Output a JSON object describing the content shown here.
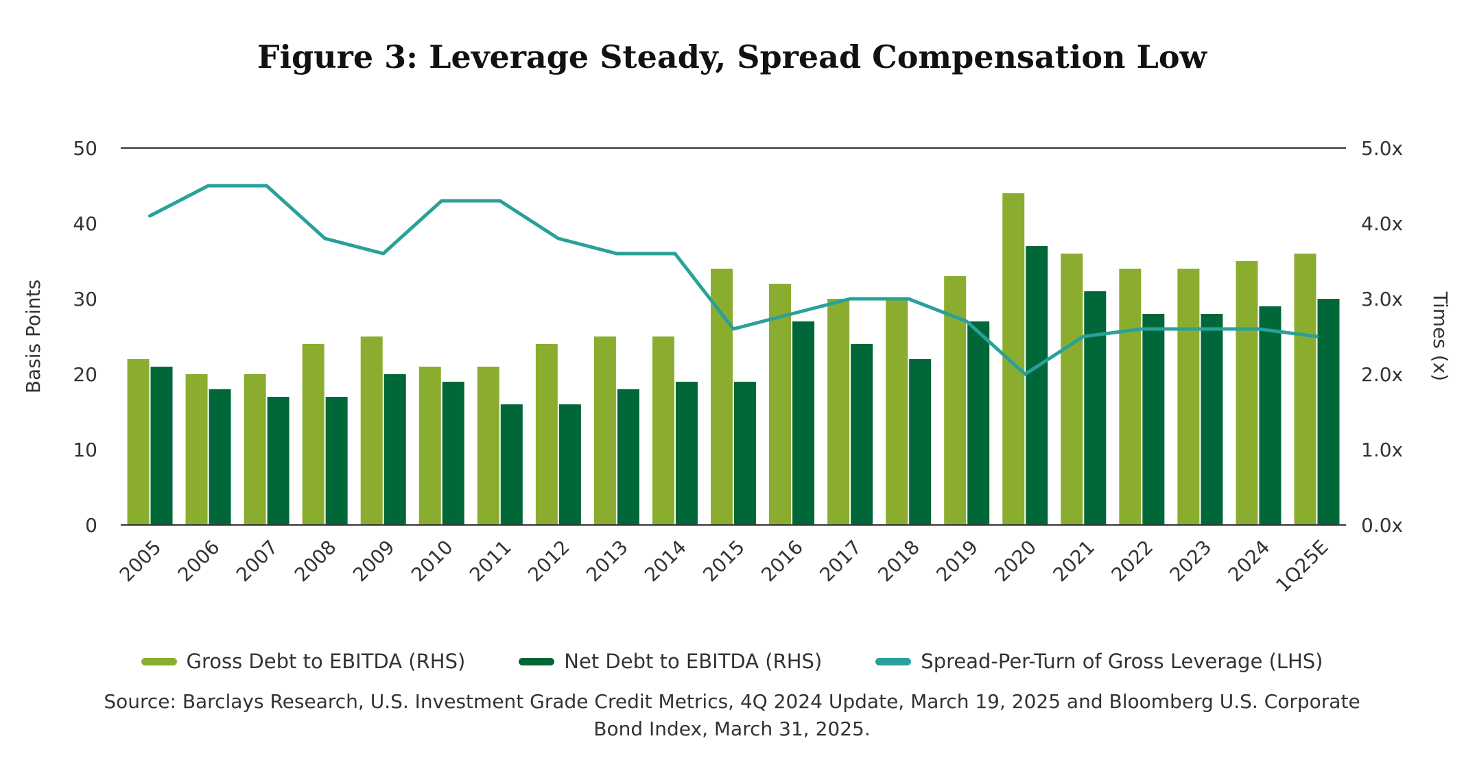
{
  "title": "Figure 3: Leverage Steady, Spread Compensation Low",
  "source": "Source: Barclays Research, U.S. Investment Grade Credit Metrics, 4Q 2024 Update, March 19, 2025 and Bloomberg U.S. Corporate Bond Index, March 31, 2025.",
  "colors": {
    "gross": "#8aad2f",
    "net": "#006838",
    "spread": "#2aa198",
    "axis": "#333333"
  },
  "chart_data": {
    "type": "bar",
    "categories": [
      "2005",
      "2006",
      "2007",
      "2008",
      "2009",
      "2010",
      "2011",
      "2012",
      "2013",
      "2014",
      "2015",
      "2016",
      "2017",
      "2018",
      "2019",
      "2020",
      "2021",
      "2022",
      "2023",
      "2024",
      "1Q25E"
    ],
    "ylabel": "Basis Points",
    "y2label": "Times (x)",
    "ylim": [
      0,
      50
    ],
    "y2lim": [
      0,
      5
    ],
    "yticks": [
      "0",
      "10",
      "20",
      "30",
      "40",
      "50"
    ],
    "y2ticks": [
      "0.0x",
      "1.0x",
      "2.0x",
      "3.0x",
      "4.0x",
      "5.0x"
    ],
    "grid": false,
    "legend_position": "bottom",
    "series": [
      {
        "name": "Gross Debt to EBITDA (RHS)",
        "type": "bar",
        "axis": "right",
        "values": [
          2.2,
          2.0,
          2.0,
          2.4,
          2.5,
          2.1,
          2.1,
          2.4,
          2.5,
          2.5,
          3.4,
          3.2,
          3.0,
          3.0,
          3.3,
          4.4,
          3.6,
          3.4,
          3.4,
          3.5,
          3.6
        ]
      },
      {
        "name": "Net Debt to EBITDA  (RHS)",
        "type": "bar",
        "axis": "right",
        "values": [
          2.1,
          1.8,
          1.7,
          1.7,
          2.0,
          1.9,
          1.6,
          1.6,
          1.8,
          1.9,
          1.9,
          2.7,
          2.4,
          2.2,
          2.7,
          3.7,
          3.1,
          2.8,
          2.8,
          2.9,
          3.0
        ]
      },
      {
        "name": "Spread-Per-Turn of Gross Leverage  (LHS)",
        "type": "line",
        "axis": "left",
        "values": [
          41,
          45,
          45,
          38,
          36,
          43,
          43,
          38,
          36,
          36,
          26,
          28,
          30,
          30,
          27,
          20,
          25,
          26,
          26,
          26,
          25
        ]
      }
    ]
  }
}
